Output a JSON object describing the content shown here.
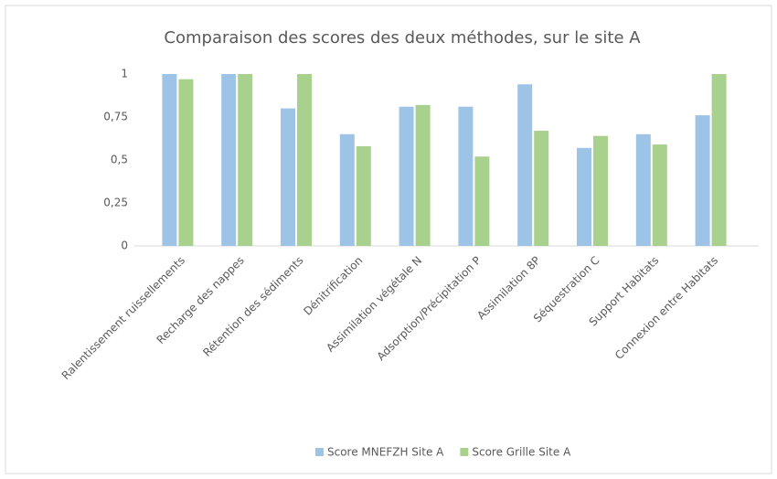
{
  "chart_data": {
    "type": "bar",
    "title": "Comparaison des scores des deux méthodes, sur le site A",
    "categories": [
      "Ralentissement ruissellements",
      "Recharge des nappes",
      "Rétention des sédiments",
      "Dénitrification",
      "Assimilation végétale N",
      "Adsorption/Précipitation P",
      "Assimilation 8P",
      "Séquestration C",
      "Support Habitats",
      "Connexion entre Habitats"
    ],
    "series": [
      {
        "name": "Score MNEFZH Site A",
        "color": "#9dc3e6",
        "values": [
          1,
          1,
          0.8,
          0.65,
          0.81,
          0.81,
          0.94,
          0.57,
          0.65,
          0.76
        ]
      },
      {
        "name": "Score Grille Site A",
        "color": "#a9d18e",
        "values": [
          0.97,
          1,
          1,
          0.58,
          0.82,
          0.52,
          0.67,
          0.64,
          0.59,
          1
        ]
      }
    ],
    "ylim": [
      0,
      1
    ],
    "yticks": [
      0,
      {
        "value": 0.25,
        "label": "0,25"
      },
      {
        "value": 0.5,
        "label": "0,5"
      },
      {
        "value": 0.75,
        "label": "0,75"
      },
      1
    ],
    "grid": false,
    "legend": "bottom"
  }
}
